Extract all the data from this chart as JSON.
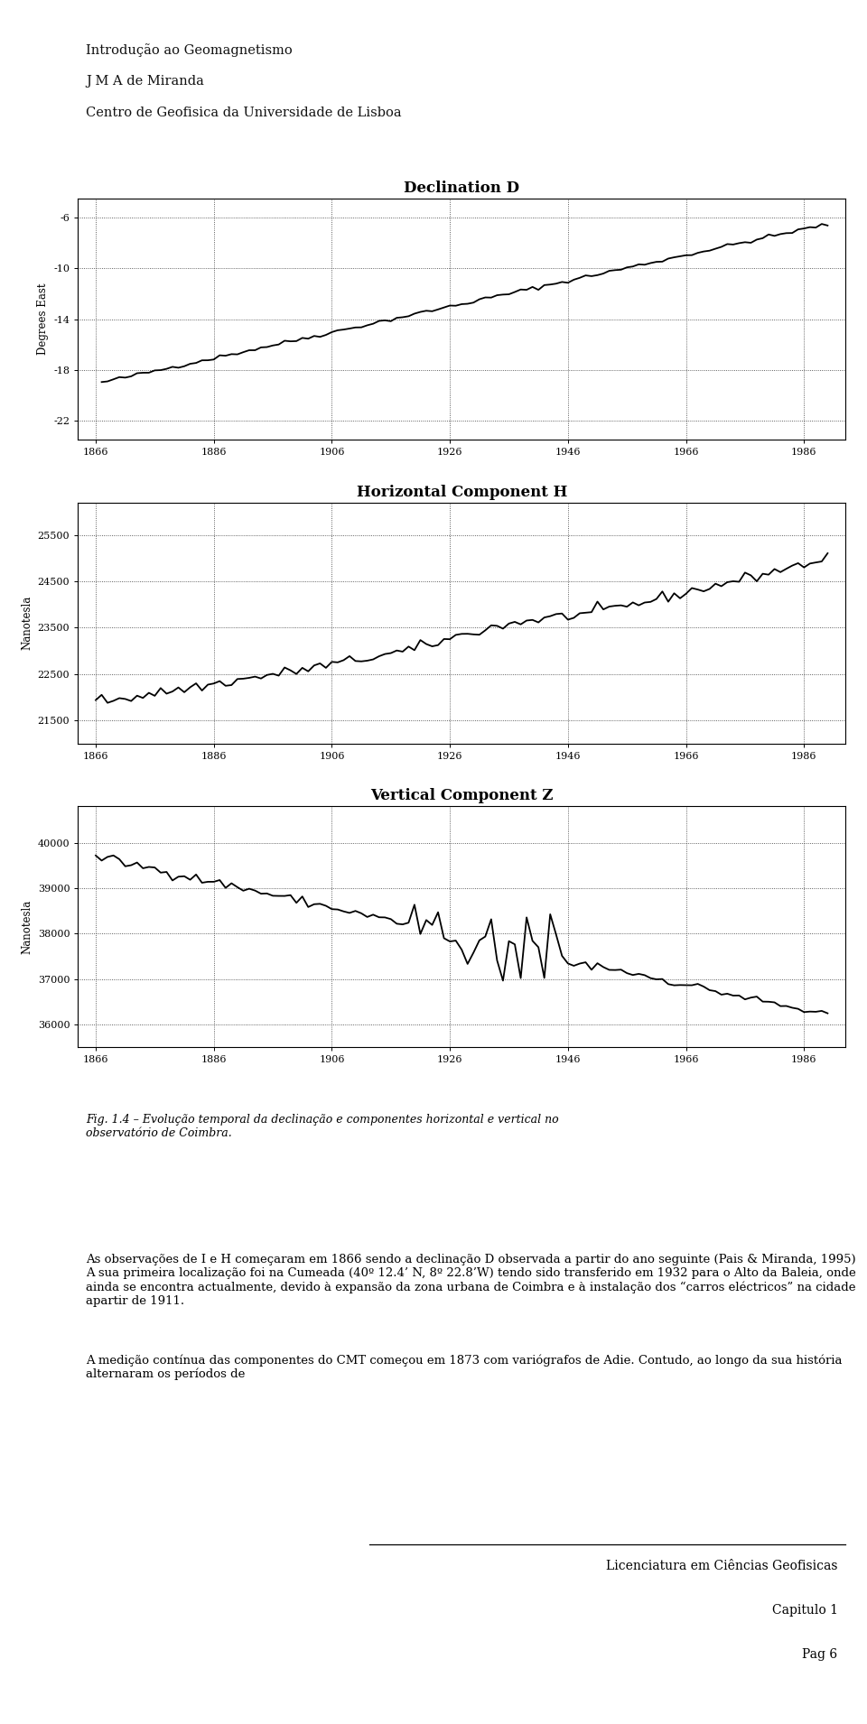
{
  "header_lines": [
    "Introdução ao Geomagnetismo",
    "J M A de Miranda",
    "Centro de Geofisica da Universidade de Lisboa"
  ],
  "footer_lines": [
    "Licenciatura em Ciências Geofisicas",
    "Capitulo 1",
    "Pag 6"
  ],
  "fig_caption": "Fig. 1.4 – Evolução temporal da declinação e componentes horizontal e vertical no\nobservatório de Coimbra.",
  "body_text_1": "As observações de I e H começaram em 1866 sendo a declinação D observada a partir do ano seguinte (Pais & Miranda, 1995)  A sua primeira localização foi na Cumeada (40º 12.4’ N, 8º 22.8’W) tendo sido transferido em 1932 para o Alto da Baleia, onde ainda se encontra actualmente, devido à expansão da zona urbana de Coimbra e à instalação dos “carros eléctricos” na cidade apartir de 1911.",
  "body_text_2": "A medição contínua das componentes do CMT começou em 1873 com variógrafos de Adie. Contudo, ao longo da sua história alternaram os períodos de",
  "plot1": {
    "title": "Declination D",
    "ylabel": "Degrees East",
    "yticks": [
      -22,
      -18,
      -14,
      -10,
      -6
    ],
    "ylim": [
      -23.5,
      -4.5
    ],
    "xticks": [
      1866,
      1886,
      1906,
      1926,
      1946,
      1966,
      1986
    ],
    "xlim": [
      1863,
      1993
    ]
  },
  "plot2": {
    "title": "Horizontal Component H",
    "ylabel": "Nanotesla",
    "yticks": [
      21500,
      22500,
      23500,
      24500,
      25500
    ],
    "ylim": [
      21000,
      26200
    ],
    "xticks": [
      1866,
      1886,
      1906,
      1926,
      1946,
      1966,
      1986
    ],
    "xlim": [
      1863,
      1993
    ]
  },
  "plot3": {
    "title": "Vertical Component Z",
    "ylabel": "Nanotesla",
    "yticks": [
      36000,
      37000,
      38000,
      39000,
      40000
    ],
    "ylim": [
      35500,
      40800
    ],
    "xticks": [
      1866,
      1886,
      1906,
      1926,
      1946,
      1966,
      1986
    ],
    "xlim": [
      1863,
      1993
    ]
  },
  "background_color": "#ffffff",
  "line_color": "#000000",
  "height_ratios": [
    5,
    13,
    13,
    13,
    4,
    12,
    8
  ]
}
